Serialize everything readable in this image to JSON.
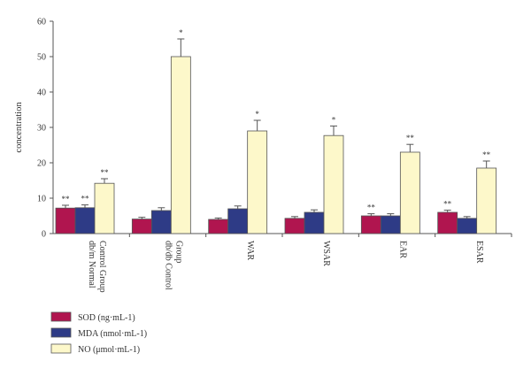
{
  "chart_data": {
    "type": "bar",
    "ylabel": "concentration",
    "xlabel": "",
    "ylim": [
      0,
      60
    ],
    "yticks": [
      0,
      10,
      20,
      30,
      40,
      50,
      60
    ],
    "categories": [
      [
        "db/m Normal",
        "Control Group"
      ],
      [
        "db/db Control",
        "Group"
      ],
      [
        "WAR"
      ],
      [
        "WSAR"
      ],
      [
        "EAR"
      ],
      [
        "ESAR"
      ]
    ],
    "series": [
      {
        "name": "SOD (ng·mL-1)",
        "color": "#b0154f",
        "values": [
          7.2,
          4.1,
          4.0,
          4.3,
          5.0,
          6.0
        ],
        "errors": [
          0.8,
          0.5,
          0.4,
          0.5,
          0.6,
          0.6
        ],
        "annotations": [
          "**",
          "",
          "",
          "",
          "**",
          "**"
        ]
      },
      {
        "name": "MDA (nmol·mL-1)",
        "color": "#2e3b86",
        "values": [
          7.3,
          6.5,
          7.0,
          6.0,
          5.0,
          4.3
        ],
        "errors": [
          0.8,
          0.8,
          0.8,
          0.7,
          0.6,
          0.5
        ],
        "annotations": [
          "**",
          "",
          "",
          "",
          "",
          ""
        ]
      },
      {
        "name": "NO (μmol·mL-1)",
        "color": "#fdf8ca",
        "values": [
          14.2,
          50.0,
          29.0,
          27.7,
          23.0,
          18.5
        ],
        "errors": [
          1.3,
          5.0,
          3.0,
          2.7,
          2.2,
          2.0
        ],
        "annotations": [
          "**",
          "*",
          "*",
          "*",
          "**",
          "**"
        ]
      }
    ],
    "legend_position": "bottom-left",
    "grid": false
  }
}
